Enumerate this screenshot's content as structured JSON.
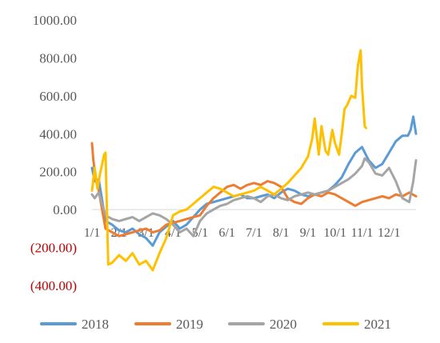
{
  "chart_data": {
    "type": "line",
    "y_tick_labels": [
      "1000.00",
      "800.00",
      "600.00",
      "400.00",
      "200.00",
      "0.00",
      "(200.00)",
      "(400.00)"
    ],
    "y_tick_values": [
      1000,
      800,
      600,
      400,
      200,
      0,
      -200,
      -400
    ],
    "ylim": [
      -400,
      1000
    ],
    "x_tick_labels": [
      "1/1",
      "2/1",
      "3/1",
      "4/1",
      "5/1",
      "6/1",
      "7/1",
      "8/1",
      "9/1",
      "10/1",
      "11/1",
      "12/1"
    ],
    "xlim": [
      1,
      13
    ],
    "grid": false,
    "legend_position": "bottom",
    "colors": {
      "2018": "#5B9BD5",
      "2019": "#ED7D31",
      "2020": "#A5A5A5",
      "2021": "#FFC000",
      "negative_tick": "#C00000",
      "positive_tick": "#595959"
    },
    "series": [
      {
        "name": "2018",
        "color": "#5B9BD5",
        "x": [
          1.0,
          1.1,
          1.25,
          1.5,
          1.75,
          2.0,
          2.25,
          2.5,
          2.75,
          3.0,
          3.25,
          3.5,
          3.75,
          4.0,
          4.25,
          4.5,
          4.75,
          5.0,
          5.25,
          5.5,
          5.75,
          6.0,
          6.25,
          6.5,
          6.75,
          7.0,
          7.25,
          7.5,
          7.75,
          8.0,
          8.25,
          8.5,
          8.75,
          9.0,
          9.25,
          9.5,
          9.75,
          10.0,
          10.25,
          10.5,
          10.75,
          11.0,
          11.25,
          11.5,
          11.75,
          12.0,
          12.25,
          12.5,
          12.7,
          12.8,
          12.9,
          13.0
        ],
        "values": [
          220,
          150,
          160,
          -60,
          -80,
          -110,
          -120,
          -100,
          -130,
          -150,
          -190,
          -120,
          -90,
          -60,
          -100,
          -80,
          -40,
          0,
          30,
          40,
          50,
          60,
          70,
          80,
          60,
          60,
          70,
          80,
          60,
          90,
          110,
          100,
          80,
          70,
          80,
          90,
          100,
          130,
          170,
          240,
          300,
          330,
          260,
          220,
          240,
          300,
          360,
          390,
          390,
          420,
          490,
          400
        ]
      },
      {
        "name": "2019",
        "color": "#ED7D31",
        "x": [
          1.0,
          1.05,
          1.15,
          1.25,
          1.5,
          1.75,
          2.0,
          2.25,
          2.5,
          2.75,
          3.0,
          3.25,
          3.5,
          3.75,
          4.0,
          4.25,
          4.5,
          4.75,
          5.0,
          5.25,
          5.5,
          5.75,
          6.0,
          6.25,
          6.5,
          6.75,
          7.0,
          7.25,
          7.5,
          7.75,
          8.0,
          8.25,
          8.5,
          8.75,
          9.0,
          9.25,
          9.5,
          9.75,
          10.0,
          10.25,
          10.5,
          10.75,
          11.0,
          11.25,
          11.5,
          11.75,
          12.0,
          12.25,
          12.5,
          12.75,
          13.0
        ],
        "values": [
          350,
          260,
          150,
          100,
          -100,
          -120,
          -140,
          -130,
          -120,
          -110,
          -100,
          -120,
          -110,
          -80,
          -70,
          -60,
          -50,
          -40,
          -30,
          20,
          60,
          90,
          120,
          130,
          110,
          130,
          140,
          130,
          150,
          140,
          120,
          60,
          40,
          30,
          60,
          80,
          70,
          90,
          80,
          60,
          40,
          20,
          40,
          50,
          60,
          70,
          60,
          80,
          70,
          90,
          70
        ]
      },
      {
        "name": "2020",
        "color": "#A5A5A5",
        "x": [
          1.0,
          1.1,
          1.25,
          1.5,
          1.75,
          2.0,
          2.25,
          2.5,
          2.75,
          3.0,
          3.25,
          3.5,
          3.75,
          4.0,
          4.25,
          4.5,
          4.75,
          5.0,
          5.25,
          5.5,
          5.75,
          6.0,
          6.25,
          6.5,
          6.75,
          7.0,
          7.25,
          7.5,
          7.75,
          8.0,
          8.25,
          8.5,
          8.75,
          9.0,
          9.25,
          9.5,
          9.75,
          10.0,
          10.25,
          10.5,
          10.75,
          11.0,
          11.1,
          11.25,
          11.5,
          11.75,
          12.0,
          12.25,
          12.5,
          12.75,
          12.9,
          13.0
        ],
        "values": [
          80,
          60,
          90,
          -30,
          -50,
          -60,
          -50,
          -40,
          -60,
          -40,
          -20,
          -30,
          -50,
          -80,
          -120,
          -100,
          -140,
          -60,
          -20,
          0,
          20,
          30,
          50,
          60,
          70,
          60,
          40,
          70,
          80,
          60,
          50,
          70,
          80,
          90,
          80,
          90,
          100,
          120,
          140,
          160,
          190,
          230,
          270,
          250,
          190,
          180,
          220,
          150,
          60,
          40,
          150,
          260
        ]
      },
      {
        "name": "2021",
        "color": "#FFC000",
        "x": [
          1.0,
          1.1,
          1.2,
          1.3,
          1.45,
          1.5,
          1.6,
          1.75,
          2.0,
          2.25,
          2.5,
          2.75,
          3.0,
          3.25,
          3.5,
          3.75,
          4.0,
          4.25,
          4.5,
          4.75,
          5.0,
          5.25,
          5.5,
          5.75,
          6.0,
          6.25,
          6.5,
          6.75,
          7.0,
          7.25,
          7.5,
          7.75,
          8.0,
          8.25,
          8.5,
          8.75,
          9.0,
          9.15,
          9.25,
          9.4,
          9.5,
          9.65,
          9.75,
          9.9,
          10.0,
          10.15,
          10.25,
          10.35,
          10.45,
          10.6,
          10.75,
          10.85,
          10.95,
          11.0,
          11.1,
          11.15
        ],
        "values": [
          100,
          220,
          110,
          190,
          290,
          300,
          -290,
          -280,
          -240,
          -270,
          -230,
          -290,
          -270,
          -320,
          -230,
          -150,
          -30,
          -10,
          0,
          30,
          60,
          90,
          120,
          110,
          90,
          70,
          80,
          90,
          100,
          120,
          100,
          80,
          110,
          140,
          180,
          220,
          280,
          370,
          480,
          290,
          440,
          310,
          290,
          420,
          350,
          290,
          400,
          530,
          550,
          600,
          590,
          760,
          840,
          650,
          440,
          430
        ]
      }
    ]
  }
}
